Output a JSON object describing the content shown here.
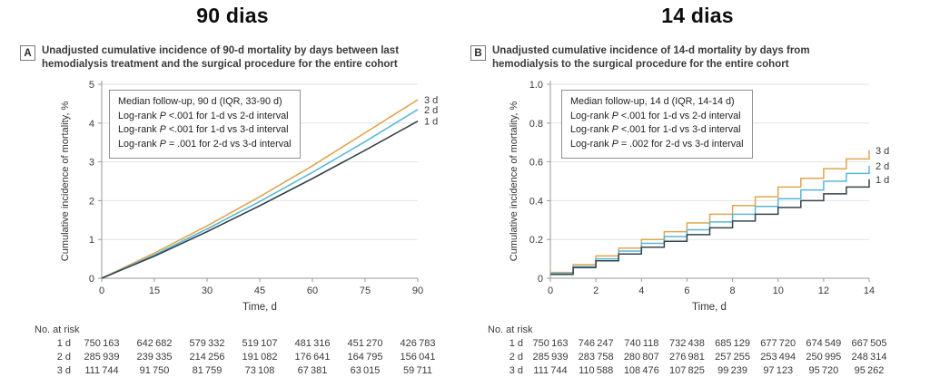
{
  "colors": {
    "series_3d": "#E0A54F",
    "series_2d": "#58B8D8",
    "series_1d": "#36434B",
    "gridline": "#E2E2E2",
    "axis": "#9A9A9A",
    "text": "#3A3A3A"
  },
  "chart_data": [
    {
      "type": "line",
      "panel_label": "A",
      "header": "90 dias",
      "caption_lines": [
        "Unadjusted cumulative incidence of 90-d mortality by days between last",
        "hemodialysis treatment and the surgical procedure for the entire cohort"
      ],
      "legend_box": [
        "Median follow-up, 90 d (IQR, 33-90 d)",
        "Log-rank P <.001 for 1-d vs 2-d interval",
        "Log-rank P <.001 for 1-d vs 3-d interval",
        "Log-rank P = .001 for 2-d vs 3-d interval"
      ],
      "xlabel": "Time, d",
      "ylabel": "Cumulative incidence of mortality, %",
      "xlim": [
        0,
        90
      ],
      "ylim": [
        0,
        5
      ],
      "xticks": [
        0,
        15,
        30,
        45,
        60,
        75,
        90
      ],
      "xtick_labels": [
        "0",
        "15",
        "30",
        "45",
        "60",
        "75",
        "90"
      ],
      "yticks": [
        0,
        1,
        2,
        3,
        4,
        5
      ],
      "ytick_labels": [
        "0",
        "1",
        "2",
        "3",
        "4",
        "5"
      ],
      "grid": true,
      "series": [
        {
          "name": "3 d",
          "color": "#E0A54F",
          "x": [
            0,
            15,
            30,
            45,
            60,
            75,
            90
          ],
          "values": [
            0,
            0.65,
            1.35,
            2.1,
            2.9,
            3.75,
            4.6
          ]
        },
        {
          "name": "2 d",
          "color": "#58B8D8",
          "x": [
            0,
            15,
            30,
            45,
            60,
            75,
            90
          ],
          "values": [
            0,
            0.6,
            1.27,
            1.98,
            2.73,
            3.52,
            4.35
          ]
        },
        {
          "name": "1 d",
          "color": "#36434B",
          "x": [
            0,
            15,
            30,
            45,
            60,
            75,
            90
          ],
          "values": [
            0,
            0.57,
            1.2,
            1.87,
            2.57,
            3.3,
            4.05
          ]
        }
      ],
      "risk_table": {
        "title": "No. at risk",
        "rows": [
          {
            "label": "1 d",
            "values": [
              "750 163",
              "642 682",
              "579 332",
              "519 107",
              "481 316",
              "451 270",
              "426 783"
            ]
          },
          {
            "label": "2 d",
            "values": [
              "285 939",
              "239 335",
              "214 256",
              "191 082",
              "176 641",
              "164 795",
              "156 041"
            ]
          },
          {
            "label": "3 d",
            "values": [
              "111 744",
              "91 750",
              "81 759",
              "73 108",
              "67 381",
              "63 015",
              "59 711"
            ]
          }
        ]
      }
    },
    {
      "type": "step",
      "panel_label": "B",
      "header": "14 dias",
      "caption_lines": [
        "Unadjusted cumulative incidence of 14-d mortality by days from",
        "hemodialysis to the surgical procedure for the entire cohort"
      ],
      "legend_box": [
        "Median follow-up, 14 d (IQR, 14-14 d)",
        "Log-rank P <.001 for 1-d vs 2-d interval",
        "Log-rank P <.001 for 1-d vs 3-d interval",
        "Log-rank P = .002 for 2-d vs 3-d interval"
      ],
      "xlabel": "Time, d",
      "ylabel": "Cumulative incidence of mortality, %",
      "xlim": [
        0,
        14
      ],
      "ylim": [
        0,
        1.0
      ],
      "xticks": [
        0,
        2,
        4,
        6,
        8,
        10,
        12,
        14
      ],
      "xtick_labels": [
        "0",
        "2",
        "4",
        "6",
        "8",
        "10",
        "12",
        "14"
      ],
      "yticks": [
        0,
        0.2,
        0.4,
        0.6,
        0.8,
        1.0
      ],
      "ytick_labels": [
        "0",
        "0.2",
        "0.4",
        "0.6",
        "0.8",
        "1.0"
      ],
      "grid": true,
      "series": [
        {
          "name": "3 d",
          "color": "#E0A54F",
          "x": [
            0,
            1,
            2,
            3,
            4,
            5,
            6,
            7,
            8,
            9,
            10,
            11,
            12,
            13,
            14
          ],
          "values": [
            0.03,
            0.07,
            0.115,
            0.155,
            0.2,
            0.24,
            0.285,
            0.33,
            0.375,
            0.42,
            0.47,
            0.515,
            0.565,
            0.615,
            0.66
          ]
        },
        {
          "name": "2 d",
          "color": "#58B8D8",
          "x": [
            0,
            1,
            2,
            3,
            4,
            5,
            6,
            7,
            8,
            9,
            10,
            11,
            12,
            13,
            14
          ],
          "values": [
            0.025,
            0.06,
            0.1,
            0.14,
            0.18,
            0.215,
            0.25,
            0.29,
            0.33,
            0.37,
            0.41,
            0.455,
            0.5,
            0.54,
            0.58
          ]
        },
        {
          "name": "1 d",
          "color": "#36434B",
          "x": [
            0,
            1,
            2,
            3,
            4,
            5,
            6,
            7,
            8,
            9,
            10,
            11,
            12,
            13,
            14
          ],
          "values": [
            0.02,
            0.055,
            0.09,
            0.125,
            0.16,
            0.19,
            0.225,
            0.26,
            0.295,
            0.33,
            0.365,
            0.4,
            0.435,
            0.47,
            0.51
          ]
        }
      ],
      "risk_table": {
        "title": "No. at risk",
        "rows": [
          {
            "label": "1 d",
            "values": [
              "750 163",
              "746 247",
              "740 118",
              "732 438",
              "685 129",
              "677 720",
              "674 549",
              "667 505"
            ]
          },
          {
            "label": "2 d",
            "values": [
              "285 939",
              "283 758",
              "280 807",
              "276 981",
              "257 255",
              "253 494",
              "250 995",
              "248 314"
            ]
          },
          {
            "label": "3 d",
            "values": [
              "111 744",
              "110 588",
              "108 476",
              "107 825",
              "99 239",
              "97 123",
              "95 720",
              "95 262"
            ]
          }
        ]
      }
    }
  ]
}
